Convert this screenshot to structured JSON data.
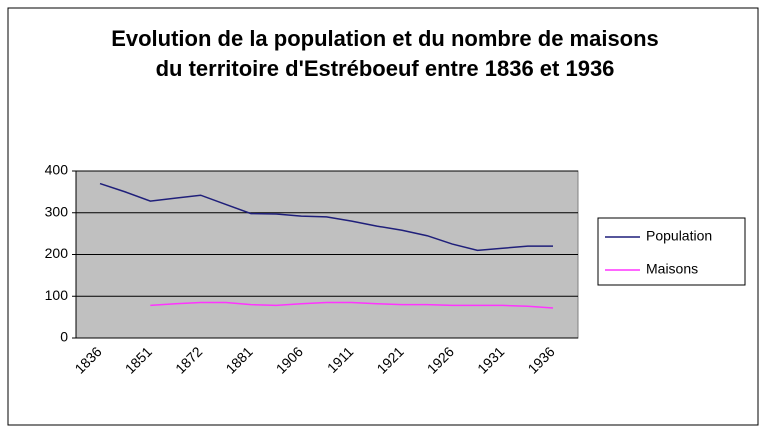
{
  "chart_data": {
    "type": "line",
    "title": "Evolution de la population et du nombre de maisons du territoire d'Estréboeuf entre 1836 et 1936",
    "categories": [
      "1836",
      null,
      "1851",
      null,
      "1872",
      null,
      "1881",
      null,
      "1906",
      null,
      "1911",
      null,
      "1921",
      null,
      "1926",
      null,
      "1931",
      null,
      "1936"
    ],
    "series": [
      {
        "name": "Population",
        "color": "#1f1f7a",
        "values": [
          370,
          350,
          328,
          335,
          342,
          320,
          298,
          297,
          292,
          290,
          280,
          268,
          258,
          245,
          225,
          210,
          215,
          220,
          220
        ]
      },
      {
        "name": "Maisons",
        "color": "#ff33ff",
        "values": [
          null,
          null,
          78,
          82,
          85,
          85,
          80,
          78,
          82,
          85,
          85,
          82,
          80,
          80,
          78,
          78,
          78,
          76,
          72
        ]
      }
    ],
    "ylim": [
      0,
      400
    ],
    "yticks": [
      0,
      100,
      200,
      300,
      400
    ],
    "grid": true,
    "plot_background": "#c0c0c0",
    "legend": "right"
  }
}
